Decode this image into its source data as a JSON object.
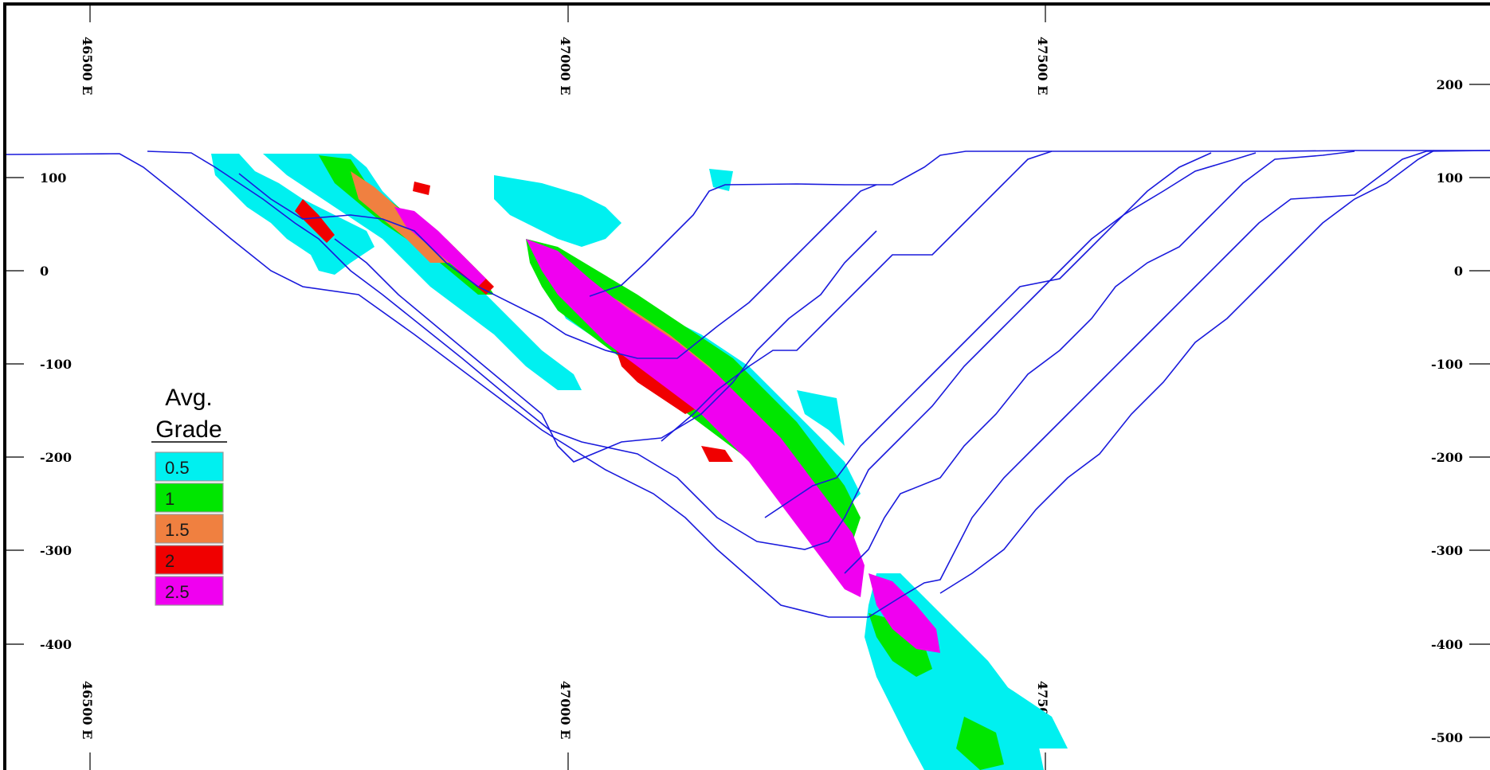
{
  "section": {
    "easting_labels_top": [
      "46500 E",
      "47000 E",
      "47500 E"
    ],
    "easting_labels_bottom": [
      "46500 E",
      "47000 E",
      "47500 E"
    ],
    "elevation_labels_left": [
      "100",
      "0",
      "-100",
      "-200",
      "-300",
      "-400"
    ],
    "elevation_labels_right": [
      "200",
      "100",
      "0",
      "-100",
      "-200",
      "-300",
      "-400",
      "-500"
    ],
    "line_color": "#1a1adc",
    "frame_color": "#000000"
  },
  "legend": {
    "title_line1": "Avg.",
    "title_line2": "Grade",
    "items": [
      {
        "label": "0.5",
        "color": "#00f0f0"
      },
      {
        "label": "1",
        "color": "#00e600"
      },
      {
        "label": "1.5",
        "color": "#f08040"
      },
      {
        "label": "2",
        "color": "#f00000"
      },
      {
        "label": "2.5",
        "color": "#f000f0"
      }
    ]
  }
}
